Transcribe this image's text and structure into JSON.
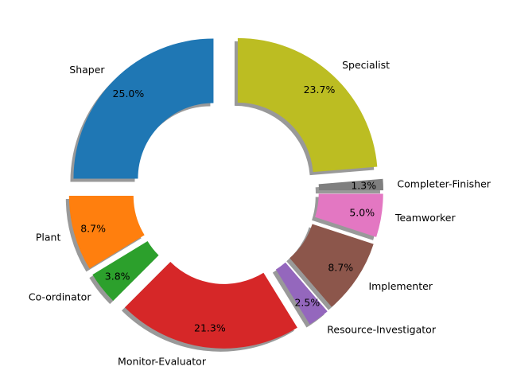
{
  "chart_data": {
    "type": "pie",
    "style": "donut",
    "start_angle_deg": 90,
    "direction": "counterclockwise",
    "shadow": true,
    "labels": [
      "Shaper",
      "Plant",
      "Co-ordinator",
      "Monitor-Evaluator",
      "Resource-Investigator",
      "Implementer",
      "Teamworker",
      "Completer-Finisher",
      "Specialist"
    ],
    "values": [
      25.0,
      8.7,
      3.8,
      21.3,
      2.5,
      8.7,
      5.0,
      1.3,
      23.7
    ],
    "value_labels": [
      "25.0%",
      "8.7%",
      "3.8%",
      "21.3%",
      "2.5%",
      "8.7%",
      "5.0%",
      "1.3%",
      "23.7%"
    ],
    "exploded": [
      true,
      true,
      true,
      true,
      true,
      true,
      true,
      true,
      true
    ],
    "colors": [
      "#1f77b4",
      "#ff7f0e",
      "#2ca02c",
      "#d62728",
      "#9467bd",
      "#8c564b",
      "#e377c2",
      "#7f7f7f",
      "#bcbd22"
    ]
  }
}
